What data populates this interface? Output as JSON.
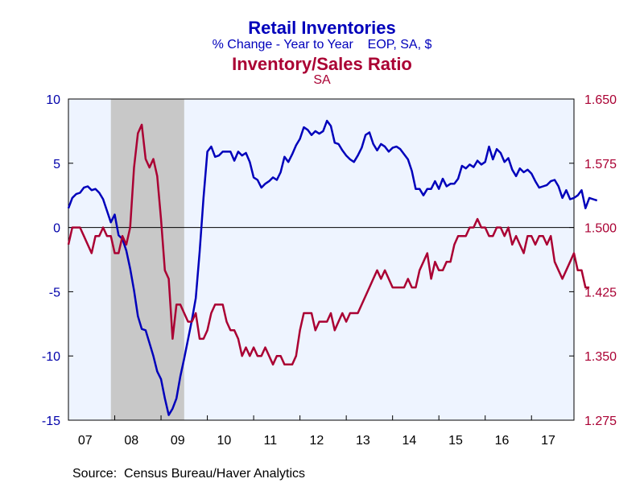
{
  "chart_data": {
    "type": "line",
    "titles": {
      "left_title": "Retail Inventories",
      "left_subtitle": "% Change - Year to Year    EOP, SA, $",
      "right_title": "Inventory/Sales Ratio",
      "right_subtitle": "SA"
    },
    "source": "Source:  Census Bureau/Haver Analytics",
    "x_range": [
      2007.0,
      2017.917
    ],
    "x_tick_labels": [
      "07",
      "08",
      "09",
      "10",
      "11",
      "12",
      "13",
      "14",
      "15",
      "16",
      "17"
    ],
    "left_axis": {
      "range": [
        -15,
        10
      ],
      "ticks": [
        10,
        5,
        0,
        -5,
        -10,
        -15
      ],
      "tick_labels": [
        "10",
        "5",
        "0",
        "-5",
        "-10",
        "-15"
      ]
    },
    "right_axis": {
      "range": [
        1.275,
        1.65
      ],
      "ticks": [
        1.65,
        1.575,
        1.5,
        1.425,
        1.35,
        1.275
      ],
      "tick_labels": [
        "1.650",
        "1.575",
        "1.500",
        "1.425",
        "1.350",
        "1.275"
      ]
    },
    "recession": {
      "start": 2007.917,
      "end": 2009.5
    },
    "zero_line": 0,
    "colors": {
      "inventories": "#0000bb",
      "ratio": "#aa0033",
      "recession": "#c8c8c8",
      "plot_bg": "#eef4ff",
      "axis_left": "#0000aa",
      "axis_right": "#aa0033"
    },
    "series": [
      {
        "axis": "left",
        "x_start": 2007.0,
        "step": 0.08333,
        "values": [
          1.5,
          2.3,
          2.6,
          2.7,
          3.1,
          3.2,
          2.9,
          3.0,
          2.7,
          2.2,
          1.3,
          0.4,
          1.0,
          -0.6,
          -0.9,
          -1.8,
          -3.2,
          -4.9,
          -6.9,
          -7.9,
          -8.0,
          -9.0,
          -10.0,
          -11.2,
          -11.8,
          -13.3,
          -14.6,
          -14.1,
          -13.3,
          -11.6,
          -10.2,
          -8.7,
          -7.2,
          -5.5,
          -1.9,
          2.3,
          5.9,
          6.3,
          5.5,
          5.6,
          5.9,
          5.9,
          5.9,
          5.2,
          5.9,
          5.6,
          5.8,
          5.1,
          3.9,
          3.7,
          3.1,
          3.4,
          3.6,
          3.9,
          3.7,
          4.3,
          5.5,
          5.1,
          5.7,
          6.4,
          6.9,
          7.8,
          7.6,
          7.2,
          7.5,
          7.3,
          7.5,
          8.3,
          7.9,
          6.6,
          6.5,
          6.0,
          5.6,
          5.3,
          5.1,
          5.6,
          6.2,
          7.2,
          7.4,
          6.5,
          6.0,
          6.5,
          6.3,
          5.9,
          6.2,
          6.3,
          6.1,
          5.7,
          5.3,
          4.4,
          3.0,
          3.0,
          2.5,
          3.0,
          3.0,
          3.6,
          3.0,
          3.8,
          3.2,
          3.4,
          3.4,
          3.8,
          4.8,
          4.6,
          4.9,
          4.7,
          5.2,
          4.9,
          5.1,
          6.3,
          5.3,
          6.1,
          5.8,
          5.1,
          5.4,
          4.5,
          4.0,
          4.6,
          4.3,
          4.5,
          4.2,
          3.6,
          3.1,
          3.2,
          3.3,
          3.6,
          3.7,
          3.2,
          2.3,
          2.9,
          2.2,
          2.3,
          2.5,
          2.9,
          1.5,
          2.3,
          2.2,
          2.1
        ]
      },
      {
        "axis": "right",
        "x_start": 2007.0,
        "step": 0.08333,
        "values": [
          1.48,
          1.5,
          1.5,
          1.5,
          1.49,
          1.48,
          1.47,
          1.49,
          1.49,
          1.5,
          1.49,
          1.49,
          1.47,
          1.47,
          1.49,
          1.48,
          1.5,
          1.57,
          1.61,
          1.62,
          1.58,
          1.57,
          1.58,
          1.56,
          1.51,
          1.45,
          1.44,
          1.37,
          1.41,
          1.41,
          1.4,
          1.39,
          1.39,
          1.4,
          1.37,
          1.37,
          1.38,
          1.4,
          1.41,
          1.41,
          1.41,
          1.39,
          1.38,
          1.38,
          1.37,
          1.35,
          1.36,
          1.35,
          1.36,
          1.35,
          1.35,
          1.36,
          1.35,
          1.34,
          1.35,
          1.35,
          1.34,
          1.34,
          1.34,
          1.35,
          1.38,
          1.4,
          1.4,
          1.4,
          1.38,
          1.39,
          1.39,
          1.39,
          1.4,
          1.38,
          1.39,
          1.4,
          1.39,
          1.4,
          1.4,
          1.4,
          1.41,
          1.42,
          1.43,
          1.44,
          1.45,
          1.44,
          1.45,
          1.44,
          1.43,
          1.43,
          1.43,
          1.43,
          1.44,
          1.43,
          1.43,
          1.45,
          1.46,
          1.47,
          1.44,
          1.46,
          1.45,
          1.45,
          1.46,
          1.46,
          1.48,
          1.49,
          1.49,
          1.49,
          1.5,
          1.5,
          1.51,
          1.5,
          1.5,
          1.49,
          1.49,
          1.5,
          1.5,
          1.49,
          1.5,
          1.48,
          1.49,
          1.48,
          1.47,
          1.49,
          1.49,
          1.48,
          1.49,
          1.49,
          1.48,
          1.49,
          1.46,
          1.45,
          1.44,
          1.45,
          1.46,
          1.47,
          1.45,
          1.45,
          1.43,
          1.43
        ]
      }
    ]
  }
}
